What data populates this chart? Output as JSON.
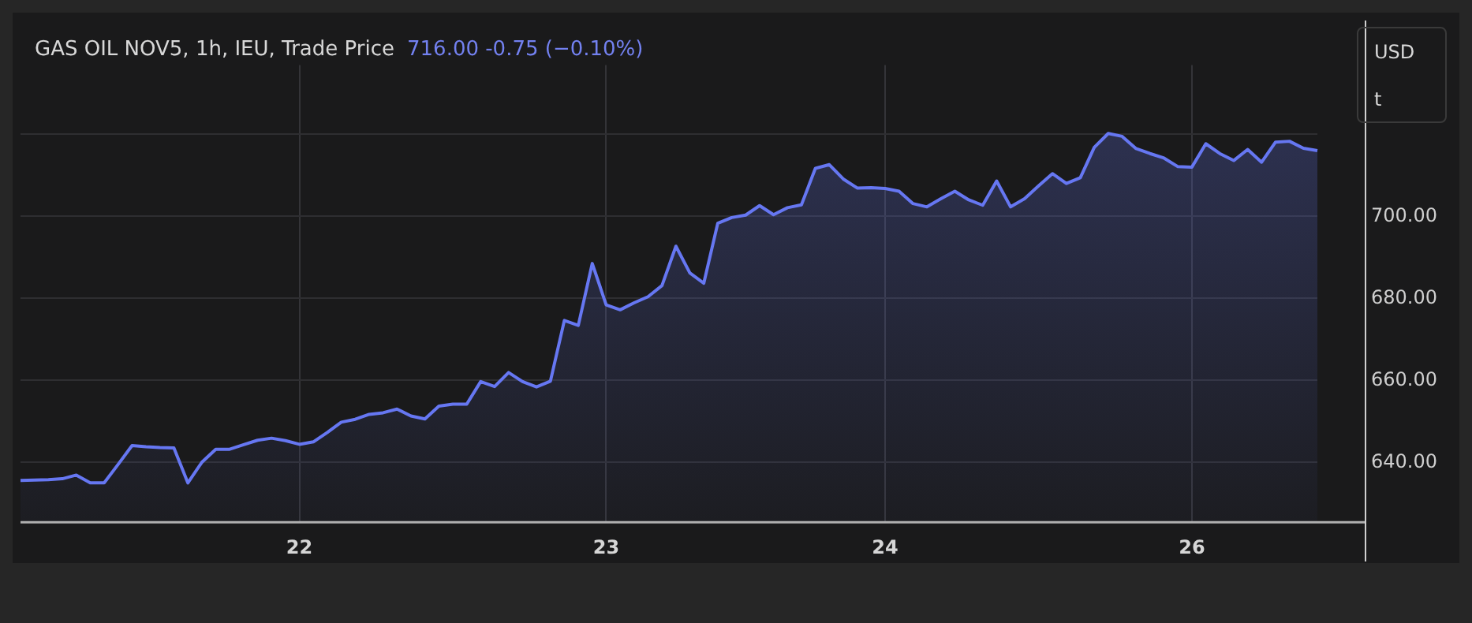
{
  "chart_data": {
    "type": "area",
    "title": "GAS OIL NOV5, 1h, IEU, Trade Price",
    "subtitle": "716.00  -0.75 (−0.10%)",
    "annotations": [
      "USD",
      "t"
    ],
    "categories": [
      null,
      null,
      null,
      null,
      null,
      null,
      null,
      null,
      null,
      null,
      null,
      null,
      null,
      null,
      null,
      null,
      null,
      null,
      null,
      null,
      "22",
      null,
      null,
      null,
      null,
      null,
      null,
      null,
      null,
      null,
      null,
      null,
      null,
      null,
      null,
      null,
      null,
      null,
      null,
      null,
      null,
      null,
      "23",
      null,
      null,
      null,
      null,
      null,
      null,
      null,
      null,
      null,
      null,
      null,
      null,
      null,
      null,
      null,
      null,
      null,
      null,
      null,
      "24",
      null,
      null,
      null,
      null,
      null,
      null,
      null,
      null,
      null,
      null,
      null,
      null,
      null,
      null,
      null,
      null,
      null,
      null,
      null,
      null,
      null,
      "26",
      null,
      null,
      null,
      null,
      null,
      null,
      null,
      null,
      null
    ],
    "values": [
      635.6,
      635.7,
      635.8,
      636.0,
      636.9,
      635.0,
      635.0,
      639.5,
      644.1,
      643.8,
      643.6,
      643.5,
      635.0,
      640.0,
      643.2,
      643.2,
      644.3,
      645.4,
      645.9,
      645.3,
      644.4,
      645.0,
      647.3,
      649.8,
      650.5,
      651.7,
      652.1,
      653.0,
      651.3,
      650.6,
      653.7,
      654.2,
      654.2,
      659.7,
      658.5,
      661.9,
      659.7,
      658.4,
      659.8,
      674.6,
      673.4,
      688.5,
      678.4,
      677.2,
      678.9,
      680.4,
      683.1,
      692.7,
      686.2,
      683.7,
      698.3,
      699.7,
      700.3,
      702.6,
      700.4,
      702.1,
      702.8,
      711.7,
      712.6,
      709.1,
      706.9,
      707.0,
      706.8,
      706.1,
      703.1,
      702.3,
      704.3,
      706.1,
      704.0,
      702.7,
      708.6,
      702.3,
      704.3,
      707.4,
      710.4,
      708.0,
      709.4,
      716.8,
      720.2,
      719.5,
      716.5,
      715.3,
      714.2,
      712.1,
      712.0,
      717.7,
      715.3,
      713.6,
      716.3,
      713.2,
      718.1,
      718.3,
      716.6,
      716.0
    ],
    "color": "#6677f2",
    "ylim": [
      625.6,
      736.9
    ],
    "yticks": [
      {
        "value": 640,
        "label": "640.00"
      },
      {
        "value": 660,
        "label": "660.00"
      },
      {
        "value": 680,
        "label": "680.00"
      },
      {
        "value": 700,
        "label": "700.00"
      },
      {
        "value": 720,
        "label": null
      }
    ],
    "grid": true,
    "legend": false,
    "marker": "none",
    "line_style": "solid"
  }
}
